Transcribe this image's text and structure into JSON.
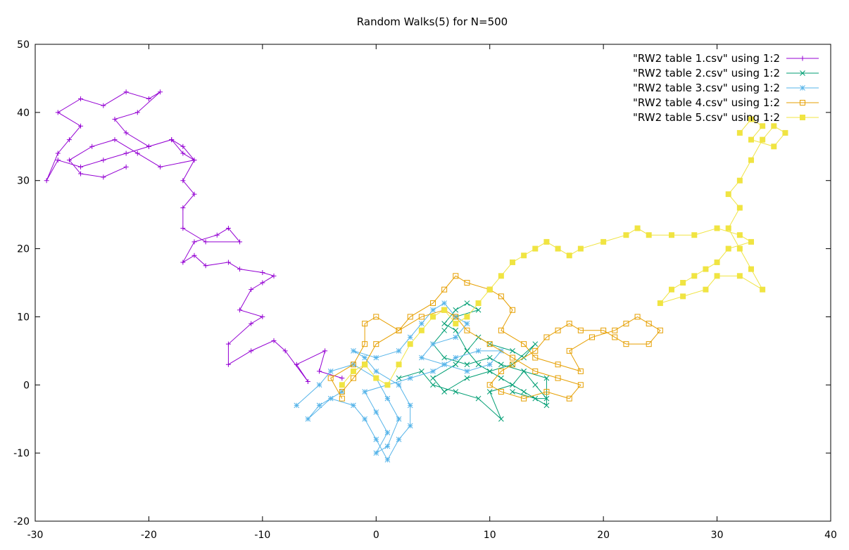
{
  "chart_data": {
    "type": "line",
    "title": "Random Walks(5) for N=500",
    "xlabel": "",
    "ylabel": "",
    "xlim": [
      -30,
      40
    ],
    "ylim": [
      -20,
      50
    ],
    "x_ticks": [
      -30,
      -20,
      -10,
      0,
      10,
      20,
      30,
      40
    ],
    "y_ticks": [
      -20,
      -10,
      0,
      10,
      20,
      30,
      40,
      50
    ],
    "grid": false,
    "legend_position": "top-right",
    "series": [
      {
        "name": "\"RW2 table 1.csv\" using 1:2",
        "color": "#9400d3",
        "marker": "plus",
        "points": [
          [
            -3,
            1
          ],
          [
            -5,
            2
          ],
          [
            -4.5,
            5
          ],
          [
            -7,
            3
          ],
          [
            -6,
            0.5
          ],
          [
            -8,
            5
          ],
          [
            -9,
            6.5
          ],
          [
            -11,
            5
          ],
          [
            -13,
            3
          ],
          [
            -13,
            6
          ],
          [
            -11,
            9
          ],
          [
            -10,
            10
          ],
          [
            -12,
            11
          ],
          [
            -11,
            14
          ],
          [
            -10,
            15
          ],
          [
            -9,
            16
          ],
          [
            -10,
            16.5
          ],
          [
            -12,
            17
          ],
          [
            -13,
            18
          ],
          [
            -15,
            17.5
          ],
          [
            -16,
            19
          ],
          [
            -17,
            18
          ],
          [
            -16,
            21
          ],
          [
            -14,
            22
          ],
          [
            -13,
            23
          ],
          [
            -12,
            21
          ],
          [
            -15,
            21
          ],
          [
            -17,
            23
          ],
          [
            -17,
            26
          ],
          [
            -16,
            28
          ],
          [
            -17,
            30
          ],
          [
            -16,
            33
          ],
          [
            -17,
            35
          ],
          [
            -18,
            36
          ],
          [
            -20,
            35
          ],
          [
            -22,
            34
          ],
          [
            -24,
            33
          ],
          [
            -26,
            32
          ],
          [
            -28,
            33
          ],
          [
            -29,
            30
          ],
          [
            -28,
            34
          ],
          [
            -27,
            36
          ],
          [
            -26,
            38
          ],
          [
            -28,
            40
          ],
          [
            -26,
            42
          ],
          [
            -24,
            41
          ],
          [
            -22,
            43
          ],
          [
            -20,
            42
          ],
          [
            -19,
            43
          ],
          [
            -21,
            40
          ],
          [
            -23,
            39
          ],
          [
            -22,
            37
          ],
          [
            -20,
            35
          ],
          [
            -18,
            36
          ],
          [
            -17,
            34
          ],
          [
            -16,
            33
          ],
          [
            -19,
            32
          ],
          [
            -21,
            34
          ],
          [
            -23,
            36
          ],
          [
            -25,
            35
          ],
          [
            -27,
            33
          ],
          [
            -26,
            31
          ],
          [
            -24,
            30.5
          ],
          [
            -22,
            32
          ]
        ]
      },
      {
        "name": "\"RW2 table 2.csv\" using 1:2",
        "color": "#009e73",
        "marker": "x",
        "points": [
          [
            2,
            1
          ],
          [
            4,
            2
          ],
          [
            5,
            0
          ],
          [
            7,
            -1
          ],
          [
            9,
            -2
          ],
          [
            11,
            -5
          ],
          [
            10,
            -1
          ],
          [
            12,
            0
          ],
          [
            13,
            2
          ],
          [
            15,
            1
          ],
          [
            15,
            -3
          ],
          [
            13,
            -1
          ],
          [
            11,
            1
          ],
          [
            9,
            3
          ],
          [
            8,
            5
          ],
          [
            9,
            7
          ],
          [
            10,
            6
          ],
          [
            12,
            5
          ],
          [
            13,
            4
          ],
          [
            14,
            6
          ],
          [
            12,
            3
          ],
          [
            10,
            2
          ],
          [
            8,
            1
          ],
          [
            6,
            -1
          ],
          [
            5,
            1
          ],
          [
            7,
            3
          ],
          [
            8,
            5
          ],
          [
            7,
            8
          ],
          [
            6,
            9
          ],
          [
            7,
            11
          ],
          [
            8,
            12
          ],
          [
            9,
            11
          ],
          [
            7,
            10
          ],
          [
            6,
            8
          ],
          [
            5,
            6
          ],
          [
            6,
            4
          ],
          [
            8,
            3
          ],
          [
            10,
            4
          ],
          [
            11,
            3
          ],
          [
            13,
            2
          ],
          [
            14,
            0
          ],
          [
            15,
            -2
          ],
          [
            14,
            -2
          ],
          [
            12,
            -1
          ]
        ]
      },
      {
        "name": "\"RW2 table 3.csv\" using 1:2",
        "color": "#56b4e9",
        "marker": "star",
        "points": [
          [
            -3,
            -1
          ],
          [
            -5,
            -3
          ],
          [
            -6,
            -5
          ],
          [
            -4,
            -2
          ],
          [
            -2,
            -3
          ],
          [
            -1,
            -5
          ],
          [
            0,
            -8
          ],
          [
            1,
            -11
          ],
          [
            2,
            -8
          ],
          [
            3,
            -6
          ],
          [
            3,
            -3
          ],
          [
            2,
            0
          ],
          [
            0,
            2
          ],
          [
            -1,
            4
          ],
          [
            -2,
            5
          ],
          [
            0,
            4
          ],
          [
            2,
            5
          ],
          [
            3,
            7
          ],
          [
            4,
            9
          ],
          [
            5,
            11
          ],
          [
            6,
            12
          ],
          [
            7,
            10
          ],
          [
            8,
            9
          ],
          [
            7,
            7
          ],
          [
            5,
            6
          ],
          [
            4,
            4
          ],
          [
            6,
            3
          ],
          [
            8,
            2
          ],
          [
            10,
            3
          ],
          [
            11,
            5
          ],
          [
            9,
            5
          ],
          [
            7,
            4
          ],
          [
            5,
            2
          ],
          [
            3,
            1
          ],
          [
            1,
            0
          ],
          [
            -1,
            -1
          ],
          [
            0,
            -4
          ],
          [
            1,
            -7
          ],
          [
            0,
            -10
          ],
          [
            1,
            -9
          ],
          [
            2,
            -5
          ],
          [
            1,
            -2
          ],
          [
            0,
            1
          ],
          [
            -2,
            3
          ],
          [
            -4,
            2
          ],
          [
            -5,
            0
          ],
          [
            -7,
            -3
          ]
        ]
      },
      {
        "name": "\"RW2 table 4.csv\" using 1:2",
        "color": "#e69f00",
        "marker": "open-square",
        "points": [
          [
            -3,
            -2
          ],
          [
            -4,
            1
          ],
          [
            -2,
            3
          ],
          [
            -1,
            6
          ],
          [
            -1,
            9
          ],
          [
            0,
            10
          ],
          [
            2,
            8
          ],
          [
            3,
            10
          ],
          [
            5,
            12
          ],
          [
            6,
            14
          ],
          [
            7,
            16
          ],
          [
            8,
            15
          ],
          [
            10,
            14
          ],
          [
            11,
            13
          ],
          [
            12,
            11
          ],
          [
            11,
            8
          ],
          [
            13,
            6
          ],
          [
            14,
            4
          ],
          [
            16,
            3
          ],
          [
            18,
            2
          ],
          [
            17,
            5
          ],
          [
            19,
            7
          ],
          [
            21,
            8
          ],
          [
            22,
            9
          ],
          [
            23,
            10
          ],
          [
            24,
            9
          ],
          [
            25,
            8
          ],
          [
            24,
            6
          ],
          [
            22,
            6
          ],
          [
            21,
            7
          ],
          [
            20,
            8
          ],
          [
            18,
            8
          ],
          [
            17,
            9
          ],
          [
            16,
            8
          ],
          [
            15,
            7
          ],
          [
            14,
            5
          ],
          [
            12,
            3
          ],
          [
            11,
            2
          ],
          [
            10,
            0
          ],
          [
            11,
            -1
          ],
          [
            13,
            -2
          ],
          [
            15,
            -1
          ],
          [
            17,
            -2
          ],
          [
            18,
            0
          ],
          [
            16,
            1
          ],
          [
            14,
            2
          ],
          [
            12,
            4
          ],
          [
            10,
            6
          ],
          [
            8,
            8
          ],
          [
            7,
            10
          ],
          [
            6,
            11
          ],
          [
            4,
            10
          ],
          [
            2,
            8
          ],
          [
            0,
            6
          ],
          [
            -1,
            3
          ],
          [
            -2,
            1
          ],
          [
            -3,
            -1
          ]
        ]
      },
      {
        "name": "\"RW2 table 5.csv\" using 1:2",
        "color": "#f0e442",
        "marker": "filled-square",
        "points": [
          [
            -3,
            0
          ],
          [
            -2,
            2
          ],
          [
            -1,
            3
          ],
          [
            0,
            1
          ],
          [
            1,
            0
          ],
          [
            2,
            3
          ],
          [
            3,
            6
          ],
          [
            4,
            8
          ],
          [
            5,
            10
          ],
          [
            6,
            11
          ],
          [
            7,
            9
          ],
          [
            8,
            10
          ],
          [
            9,
            12
          ],
          [
            10,
            14
          ],
          [
            11,
            16
          ],
          [
            12,
            18
          ],
          [
            13,
            19
          ],
          [
            14,
            20
          ],
          [
            15,
            21
          ],
          [
            16,
            20
          ],
          [
            17,
            19
          ],
          [
            18,
            20
          ],
          [
            20,
            21
          ],
          [
            22,
            22
          ],
          [
            23,
            23
          ],
          [
            24,
            22
          ],
          [
            26,
            22
          ],
          [
            28,
            22
          ],
          [
            30,
            23
          ],
          [
            32,
            22
          ],
          [
            33,
            21
          ],
          [
            31,
            20
          ],
          [
            30,
            18
          ],
          [
            29,
            17
          ],
          [
            28,
            16
          ],
          [
            27,
            15
          ],
          [
            26,
            14
          ],
          [
            25,
            12
          ],
          [
            27,
            13
          ],
          [
            29,
            14
          ],
          [
            30,
            16
          ],
          [
            32,
            16
          ],
          [
            34,
            14
          ],
          [
            33,
            17
          ],
          [
            32,
            20
          ],
          [
            31,
            23
          ],
          [
            32,
            26
          ],
          [
            31,
            28
          ],
          [
            32,
            30
          ],
          [
            33,
            33
          ],
          [
            34,
            36
          ],
          [
            35,
            38
          ],
          [
            36,
            37
          ],
          [
            35,
            35
          ],
          [
            33,
            36
          ],
          [
            34,
            38
          ],
          [
            33,
            39
          ],
          [
            32,
            37
          ]
        ]
      }
    ]
  }
}
